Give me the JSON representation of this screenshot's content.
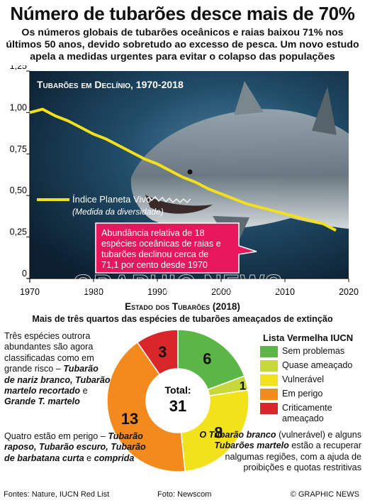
{
  "title": "Número de tubarões desce mais de 70%",
  "subtitle": "Os números globais de tubarões oceânicos e raias baixou 71% nos últimos 50 anos, devido sobretudo ao excesso de pesca. Um novo estudo apela a medidas urgentes para evitar o colapso das populações",
  "chart_data": [
    {
      "type": "line",
      "title": "Tubarões em Declínio, 1970-2018",
      "series": [
        {
          "name": "Índice Planeta Vivo",
          "x": [
            1970,
            1972,
            1974,
            1976,
            1978,
            1980,
            1982,
            1984,
            1986,
            1988,
            1990,
            1992,
            1994,
            1996,
            1998,
            2000,
            2002,
            2004,
            2006,
            2008,
            2010,
            2012,
            2014,
            2016,
            2018
          ],
          "values": [
            1.0,
            1.02,
            0.98,
            0.95,
            0.91,
            0.87,
            0.84,
            0.8,
            0.76,
            0.72,
            0.69,
            0.65,
            0.61,
            0.58,
            0.54,
            0.51,
            0.48,
            0.45,
            0.43,
            0.41,
            0.39,
            0.37,
            0.35,
            0.33,
            0.29
          ]
        }
      ],
      "series_note": "(Medida da diversidade)",
      "xlim": [
        1970,
        2020
      ],
      "ylim": [
        0,
        1.25
      ],
      "xticks": [
        "1970",
        "1980",
        "1990",
        "2000",
        "2010",
        "2020"
      ],
      "yticks": [
        "0",
        "0,25",
        "0,50",
        "0,75",
        "1,00",
        "1,25"
      ],
      "line_color": "#f2e01e",
      "annotation": "Abundância relativa de 18 espécies oceânicas de raias e tubarões declinou cerca de 71,1 por cento desde 1970",
      "annotation_color": "#e8175d",
      "grid": false
    },
    {
      "type": "pie",
      "title": "Estado dos Tubarões (2018)",
      "subtitle": "Mais de três quartos das espécies de tubarões ameaçados de extinção",
      "center_label": "Total:",
      "center_value": "31",
      "legend_title": "Lista Vermelha IUCN",
      "slices": [
        {
          "label": "Sem problemas",
          "value": 6,
          "color": "#5cb646"
        },
        {
          "label": "Quase ameaçado",
          "value": 1,
          "color": "#c6d83a"
        },
        {
          "label": "Vulnerável",
          "value": 8,
          "color": "#f2e21b"
        },
        {
          "label": "Em perigo",
          "value": 13,
          "color": "#f28a1e"
        },
        {
          "label": "Criticamente ameaçado",
          "value": 3,
          "color": "#d9262b"
        }
      ]
    }
  ],
  "notes": {
    "left_top": {
      "plain": "Três espécies outrora abundantes são agora classificadas como em grande risco – ",
      "bold1": "Tubarão de nariz branco, Tubarão martelo recortado",
      "mid": " e ",
      "bold2": "Grande T. martelo"
    },
    "left_bottom": {
      "plain": "Quatro estão em perigo – ",
      "bold1": "Tubarão raposo, Tubarão escuro, Tubarão de barbatana curta",
      "mid": " e ",
      "bold2": "comprida"
    },
    "right_bottom": {
      "bold1": "O Tubarão branco",
      "mid1": " (vulnerável) e alguns ",
      "bold2": "Tubarões martelo",
      "rest": " estão a recuperar nalgumas regiões, com a ajuda de proibições e quotas restritivas"
    }
  },
  "footer": {
    "sources": "Fontes: Nature, IUCN Red List",
    "photo": "Foto: Newscom",
    "credit": "© GRAPHIC NEWS"
  },
  "watermark": "GRAPHIC NEWS"
}
